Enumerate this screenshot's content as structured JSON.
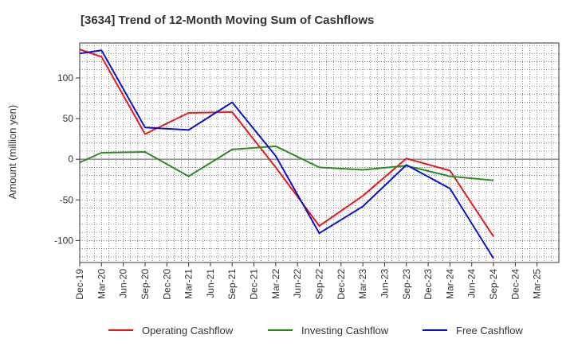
{
  "chart_data": {
    "type": "line",
    "title": "[3634]  Trend of 12-Month Moving Sum of Cashflows",
    "ylabel": "Amount (million yen)",
    "xlabel": "",
    "ylim": [
      -127,
      143
    ],
    "yticks": [
      -100,
      -50,
      0,
      50,
      100
    ],
    "ytick_labels": [
      "-100",
      "-50",
      "0",
      "50",
      "100"
    ],
    "x_quarters": [
      "Dec-19",
      "Mar-20",
      "Jun-20",
      "Sep-20",
      "Dec-20",
      "Mar-21",
      "Jun-21",
      "Sep-21",
      "Dec-21",
      "Mar-22",
      "Jun-22",
      "Sep-22",
      "Dec-22",
      "Mar-23",
      "Jun-23",
      "Sep-23",
      "Dec-23",
      "Mar-24",
      "Jun-24",
      "Sep-24",
      "Dec-24",
      "Mar-25"
    ],
    "xtick_labels": [
      "Dec-19",
      "Mar-20",
      "Jun-20",
      "Sep-20",
      "Dec-20",
      "Mar-21",
      "Jun-21",
      "Sep-21",
      "Dec-21",
      "Mar-22",
      "Jun-22",
      "Sep-22",
      "Dec-22",
      "Mar-23",
      "Jun-23",
      "Sep-23",
      "Dec-23",
      "Mar-24",
      "Jun-24",
      "Sep-24",
      "Dec-24",
      "Mar-25"
    ],
    "grid": true,
    "legend_position": "bottom",
    "series": [
      {
        "name": "Operating Cashflow",
        "color": "#e41a1c",
        "points": [
          [
            "Dec-19",
            135
          ],
          [
            "Mar-20",
            126
          ],
          [
            "Sep-20",
            31
          ],
          [
            "Mar-21",
            57
          ],
          [
            "Sep-21",
            58
          ],
          [
            "Mar-22",
            -10
          ],
          [
            "Sep-22",
            -82
          ],
          [
            "Mar-23",
            -45
          ],
          [
            "Sep-23",
            1
          ],
          [
            "Mar-24",
            -14
          ],
          [
            "Sep-24",
            -95
          ]
        ]
      },
      {
        "name": "Investing Cashflow",
        "color": "#2e8b22",
        "points": [
          [
            "Dec-19",
            -4
          ],
          [
            "Mar-20",
            8
          ],
          [
            "Sep-20",
            9
          ],
          [
            "Mar-21",
            -21
          ],
          [
            "Sep-21",
            12
          ],
          [
            "Mar-22",
            16
          ],
          [
            "Sep-22",
            -10
          ],
          [
            "Mar-23",
            -13
          ],
          [
            "Sep-23",
            -8
          ],
          [
            "Mar-24",
            -21
          ],
          [
            "Sep-24",
            -26
          ]
        ]
      },
      {
        "name": "Free Cashflow",
        "color": "#0a14c8",
        "points": [
          [
            "Dec-19",
            130
          ],
          [
            "Mar-20",
            134
          ],
          [
            "Sep-20",
            39
          ],
          [
            "Mar-21",
            36
          ],
          [
            "Sep-21",
            70
          ],
          [
            "Mar-22",
            4
          ],
          [
            "Sep-22",
            -91
          ],
          [
            "Mar-23",
            -58
          ],
          [
            "Sep-23",
            -7
          ],
          [
            "Mar-24",
            -36
          ],
          [
            "Sep-24",
            -122
          ]
        ]
      }
    ]
  }
}
